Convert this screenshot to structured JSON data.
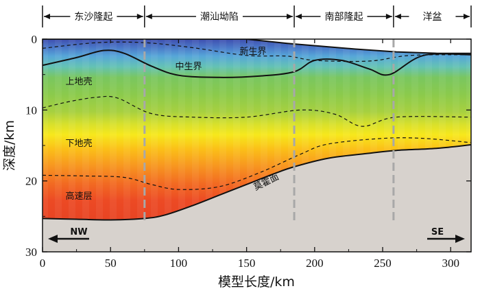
{
  "chart_data": {
    "type": "heatmap",
    "xlabel": "模型长度/km",
    "ylabel": "深度/km",
    "xlim": [
      0,
      315
    ],
    "ylim": [
      0,
      30
    ],
    "y_inverted": true,
    "x_ticks": [
      "0",
      "50",
      "100",
      "150",
      "200",
      "250",
      "300"
    ],
    "y_ticks": [
      "0",
      "10",
      "20",
      "30"
    ],
    "regions": [
      {
        "label": "东沙隆起",
        "x_start": 0,
        "x_end": 75
      },
      {
        "label": "潮汕坳陷",
        "x_start": 75,
        "x_end": 185
      },
      {
        "label": "南部隆起",
        "x_start": 185,
        "x_end": 258
      },
      {
        "label": "洋盆",
        "x_start": 258,
        "x_end": 315
      }
    ],
    "layer_labels": [
      "新生界",
      "中生界",
      "上地壳",
      "下地壳",
      "高速层",
      "莫霍面"
    ],
    "direction_left": "NW",
    "direction_right": "SE",
    "moho_depth_km": {
      "x": [
        0,
        25,
        50,
        75,
        90,
        110,
        130,
        150,
        170,
        185,
        210,
        240,
        260,
        290,
        315
      ],
      "y": [
        25.3,
        25.4,
        25.5,
        25.3,
        24.8,
        23.5,
        22.0,
        20.5,
        19.0,
        18.0,
        16.8,
        16.1,
        15.7,
        15.4,
        14.9
      ]
    },
    "mesozoic_top_km": {
      "x": [
        0,
        25,
        45,
        60,
        80,
        100,
        130,
        160,
        185,
        200,
        220,
        240,
        255,
        280,
        315
      ],
      "y": [
        3.7,
        2.6,
        1.6,
        2.0,
        3.8,
        5.1,
        5.4,
        5.2,
        4.6,
        3.0,
        3.0,
        4.2,
        5.0,
        2.3,
        2.2
      ]
    },
    "dashed_cenozoic_base_km": {
      "x": [
        0,
        40,
        75,
        110,
        150,
        180,
        200,
        240,
        270,
        315
      ],
      "y": [
        1.3,
        0.5,
        0.5,
        1.2,
        2.3,
        2.4,
        3.0,
        3.1,
        2.3,
        2.2
      ]
    },
    "dashed_upper_lower_crust_km": {
      "x": [
        0,
        20,
        40,
        55,
        80,
        110,
        150,
        190,
        215,
        235,
        260,
        315
      ],
      "y": [
        9.7,
        8.8,
        8.2,
        8.3,
        10.5,
        11.0,
        11.0,
        10.0,
        10.6,
        12.3,
        11.0,
        11.0
      ]
    },
    "dashed_highspeed_top_km": {
      "x": [
        0,
        30,
        60,
        80,
        100,
        130,
        160,
        190,
        210,
        250,
        280,
        315
      ],
      "y": [
        19.2,
        19.3,
        19.5,
        20.5,
        21.2,
        20.8,
        18.8,
        16.2,
        14.8,
        14.0,
        14.0,
        14.6
      ]
    },
    "seafloor_km": {
      "x": [
        0,
        150,
        180,
        230,
        260,
        290,
        315
      ],
      "y": [
        0,
        0,
        0.6,
        1.4,
        1.8,
        2.0,
        2.0
      ]
    },
    "boundary_x_km": [
      75,
      185,
      258
    ]
  }
}
